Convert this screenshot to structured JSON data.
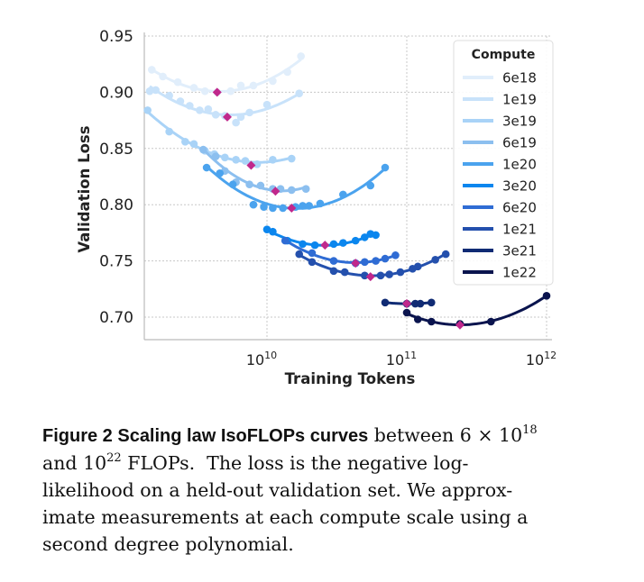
{
  "chart_data": {
    "type": "scatter",
    "xscale": "log",
    "xlabel": "Training Tokens",
    "ylabel": "Validation Loss",
    "xlim": [
      1300000000.0,
      1100000000000.0
    ],
    "ylim": [
      0.68,
      0.95
    ],
    "xticks": [
      {
        "base": "10",
        "exp": "10",
        "value": 10000000000.0
      },
      {
        "base": "10",
        "exp": "11",
        "value": 100000000000.0
      },
      {
        "base": "10",
        "exp": "12",
        "value": 1000000000000.0
      }
    ],
    "yticks": [
      "0.70",
      "0.75",
      "0.80",
      "0.85",
      "0.90",
      "0.95"
    ],
    "grid": true,
    "legend": {
      "title": "Compute",
      "placement": "top-right"
    },
    "optimum_color": "#c0288c",
    "series": [
      {
        "name": "6e18",
        "color": "#e1eefb",
        "points": [
          [
            1500000000.0,
            0.92
          ],
          [
            1800000000.0,
            0.914
          ],
          [
            2300000000.0,
            0.909
          ],
          [
            3000000000.0,
            0.904
          ],
          [
            3600000000.0,
            0.901
          ],
          [
            4400000000.0,
            0.9
          ],
          [
            5500000000.0,
            0.901
          ],
          [
            6500000000.0,
            0.906
          ],
          [
            8000000000.0,
            0.906
          ],
          [
            11000000000.0,
            0.91
          ],
          [
            14000000000.0,
            0.918
          ],
          [
            17500000000.0,
            0.932
          ]
        ],
        "optimum": [
          4400000000.0,
          0.9
        ]
      },
      {
        "name": "1e19",
        "color": "#c8e2fa",
        "points": [
          [
            1450000000.0,
            0.901
          ],
          [
            1600000000.0,
            0.902
          ],
          [
            2000000000.0,
            0.897
          ],
          [
            2400000000.0,
            0.892
          ],
          [
            2800000000.0,
            0.888
          ],
          [
            3300000000.0,
            0.884
          ],
          [
            3800000000.0,
            0.885
          ],
          [
            4300000000.0,
            0.88
          ],
          [
            5000000000.0,
            0.879
          ],
          [
            6000000000.0,
            0.873
          ],
          [
            6500000000.0,
            0.878
          ],
          [
            7500000000.0,
            0.882
          ],
          [
            10000000000.0,
            0.889
          ],
          [
            17000000000.0,
            0.899
          ]
        ],
        "optimum": [
          5200000000.0,
          0.878
        ]
      },
      {
        "name": "3e19",
        "color": "#a9d3f7",
        "points": [
          [
            1400000000.0,
            0.884
          ],
          [
            2000000000.0,
            0.865
          ],
          [
            2600000000.0,
            0.856
          ],
          [
            3000000000.0,
            0.854
          ],
          [
            3600000000.0,
            0.848
          ],
          [
            4200000000.0,
            0.845
          ],
          [
            5000000000.0,
            0.842
          ],
          [
            6000000000.0,
            0.84
          ],
          [
            7000000000.0,
            0.839
          ],
          [
            8500000000.0,
            0.836
          ],
          [
            11000000000.0,
            0.84
          ],
          [
            15000000000.0,
            0.841
          ]
        ],
        "optimum": [
          7700000000.0,
          0.835
        ]
      },
      {
        "name": "6e19",
        "color": "#8cbfef",
        "points": [
          [
            3500000000.0,
            0.849
          ],
          [
            4300000000.0,
            0.843
          ],
          [
            5000000000.0,
            0.83
          ],
          [
            6000000000.0,
            0.82
          ],
          [
            7500000000.0,
            0.818
          ],
          [
            9000000000.0,
            0.817
          ],
          [
            11000000000.0,
            0.814
          ],
          [
            12500000000.0,
            0.814
          ],
          [
            15000000000.0,
            0.813
          ],
          [
            19000000000.0,
            0.814
          ]
        ],
        "optimum": [
          11500000000.0,
          0.812
        ]
      },
      {
        "name": "1e20",
        "color": "#4ba3ee",
        "points": [
          [
            3700000000.0,
            0.833
          ],
          [
            4600000000.0,
            0.828
          ],
          [
            5700000000.0,
            0.818
          ],
          [
            8000000000.0,
            0.8
          ],
          [
            9500000000.0,
            0.798
          ],
          [
            11000000000.0,
            0.797
          ],
          [
            13000000000.0,
            0.797
          ],
          [
            16000000000.0,
            0.798
          ],
          [
            18000000000.0,
            0.799
          ],
          [
            20000000000.0,
            0.799
          ],
          [
            24000000000.0,
            0.801
          ],
          [
            35000000000.0,
            0.809
          ],
          [
            55000000000.0,
            0.817
          ],
          [
            70000000000.0,
            0.833
          ]
        ],
        "optimum": [
          15000000000.0,
          0.797
        ]
      },
      {
        "name": "3e20",
        "color": "#0b86ee",
        "points": [
          [
            10000000000.0,
            0.778
          ],
          [
            11000000000.0,
            0.776
          ],
          [
            14000000000.0,
            0.768
          ],
          [
            18000000000.0,
            0.765
          ],
          [
            22000000000.0,
            0.764
          ],
          [
            30000000000.0,
            0.765
          ],
          [
            35000000000.0,
            0.766
          ],
          [
            43000000000.0,
            0.768
          ],
          [
            50000000000.0,
            0.771
          ],
          [
            55000000000.0,
            0.774
          ],
          [
            60000000000.0,
            0.773
          ]
        ],
        "optimum": [
          26000000000.0,
          0.764
        ]
      },
      {
        "name": "6e20",
        "color": "#2f6cd4",
        "points": [
          [
            13500000000.0,
            0.768
          ],
          [
            21000000000.0,
            0.757
          ],
          [
            30000000000.0,
            0.75
          ],
          [
            43000000000.0,
            0.748
          ],
          [
            50000000000.0,
            0.749
          ],
          [
            60000000000.0,
            0.75
          ],
          [
            70000000000.0,
            0.752
          ],
          [
            83000000000.0,
            0.755
          ]
        ],
        "optimum": [
          43000000000.0,
          0.748
        ]
      },
      {
        "name": "1e21",
        "color": "#2450ad",
        "points": [
          [
            17000000000.0,
            0.756
          ],
          [
            21000000000.0,
            0.749
          ],
          [
            30000000000.0,
            0.741
          ],
          [
            36000000000.0,
            0.74
          ],
          [
            50000000000.0,
            0.737
          ],
          [
            65000000000.0,
            0.737
          ],
          [
            75000000000.0,
            0.738
          ],
          [
            90000000000.0,
            0.74
          ],
          [
            110000000000.0,
            0.743
          ],
          [
            120000000000.0,
            0.745
          ],
          [
            160000000000.0,
            0.751
          ],
          [
            190000000000.0,
            0.756
          ]
        ],
        "optimum": [
          55000000000.0,
          0.736
        ]
      },
      {
        "name": "3e21",
        "color": "#102b74",
        "points": [
          [
            70000000000.0,
            0.713
          ],
          [
            100000000000.0,
            0.712
          ],
          [
            115000000000.0,
            0.712
          ],
          [
            125000000000.0,
            0.712
          ],
          [
            150000000000.0,
            0.713
          ]
        ],
        "optimum": [
          100000000000.0,
          0.712
        ]
      },
      {
        "name": "1e22",
        "color": "#0a144e",
        "points": [
          [
            100000000000.0,
            0.704
          ],
          [
            120000000000.0,
            0.698
          ],
          [
            150000000000.0,
            0.696
          ],
          [
            240000000000.0,
            0.694
          ],
          [
            400000000000.0,
            0.696
          ],
          [
            1000000000000.0,
            0.719
          ]
        ],
        "optimum": [
          240000000000.0,
          0.693
        ]
      }
    ]
  },
  "caption": {
    "figure_label": "Figure 2  Scaling law IsoFLOPs curves",
    "l1_text": " between 6 × 10",
    "l1_sup": "18",
    "l2_a": "and 10",
    "l2_sup": "22",
    "l2_b": " FLOPs.  The loss is the negative log-",
    "l3": "likelihood on a held-out validation set. We approx-",
    "l4": "imate measurements at each compute scale using a",
    "l5": "second degree polynomial."
  }
}
